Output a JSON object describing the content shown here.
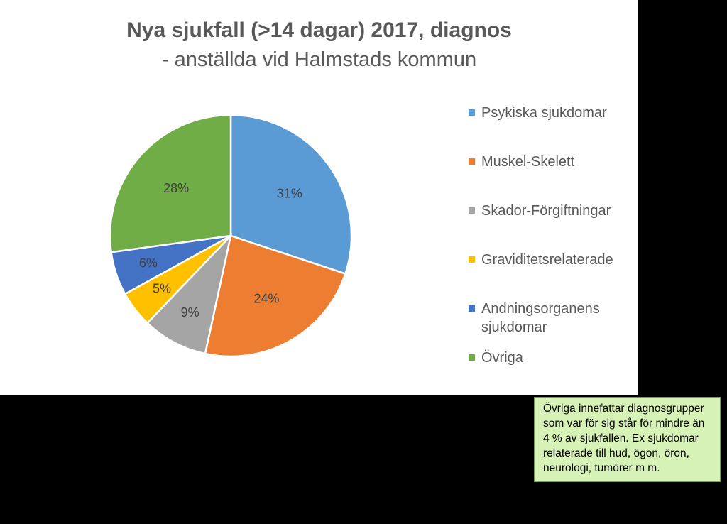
{
  "chart_data": {
    "type": "pie",
    "title": "Nya sjukfall (>14 dagar) 2017, diagnos",
    "subtitle": "- anställda vid Halmstads kommun",
    "legend_position": "right",
    "slices": [
      {
        "name": "Psykiska sjukdomar",
        "value": 31,
        "label": "31%",
        "color": "#5b9bd5"
      },
      {
        "name": "Muskel-Skelett",
        "value": 24,
        "label": "24%",
        "color": "#ed7d31"
      },
      {
        "name": "Skador-Förgiftningar",
        "value": 9,
        "label": "9%",
        "color": "#a5a5a5"
      },
      {
        "name": "Graviditetsrelaterade",
        "value": 5,
        "label": "5%",
        "color": "#ffc000"
      },
      {
        "name": "Andningsorganens sjukdomar",
        "value": 6,
        "label": "6%",
        "color": "#4472c4"
      },
      {
        "name": "Övriga",
        "value": 28,
        "label": "28%",
        "color": "#70ad47"
      }
    ]
  },
  "note": {
    "term": "Övriga",
    "text": " innefattar diagnosgrupper som var för sig står för mindre än 4 % av sjukfallen. Ex sjukdomar relaterade till hud, ögon, öron, neurologi, tumörer m m."
  }
}
